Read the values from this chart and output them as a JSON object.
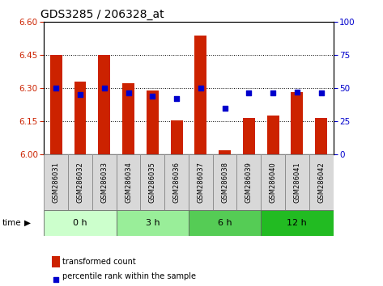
{
  "title": "GDS3285 / 206328_at",
  "samples": [
    "GSM286031",
    "GSM286032",
    "GSM286033",
    "GSM286034",
    "GSM286035",
    "GSM286036",
    "GSM286037",
    "GSM286038",
    "GSM286039",
    "GSM286040",
    "GSM286041",
    "GSM286042"
  ],
  "transformed_count": [
    6.45,
    6.33,
    6.45,
    6.32,
    6.29,
    6.155,
    6.535,
    6.02,
    6.165,
    6.175,
    6.28,
    6.165
  ],
  "percentile_rank": [
    50,
    45,
    50,
    46,
    44,
    42,
    50,
    35,
    46,
    46,
    47,
    46
  ],
  "ylim_left": [
    6.0,
    6.6
  ],
  "ylim_right": [
    0,
    100
  ],
  "yticks_left": [
    6.0,
    6.15,
    6.3,
    6.45,
    6.6
  ],
  "yticks_right": [
    0,
    25,
    50,
    75,
    100
  ],
  "hlines": [
    6.15,
    6.3,
    6.45
  ],
  "bar_color": "#cc2200",
  "dot_color": "#0000cc",
  "bar_width": 0.5,
  "ylabel_left_color": "#cc2200",
  "ylabel_right_color": "#0000cc",
  "legend_bar_label": "transformed count",
  "legend_dot_label": "percentile rank within the sample",
  "group_colors": [
    "#ccffcc",
    "#99ee99",
    "#55cc55",
    "#22bb22"
  ],
  "group_labels": [
    "0 h",
    "3 h",
    "6 h",
    "12 h"
  ],
  "group_ranges": [
    [
      0,
      3
    ],
    [
      3,
      6
    ],
    [
      6,
      9
    ],
    [
      9,
      12
    ]
  ],
  "sample_box_color": "#d8d8d8",
  "title_fontsize": 10,
  "tick_fontsize": 7.5,
  "label_fontsize": 6
}
